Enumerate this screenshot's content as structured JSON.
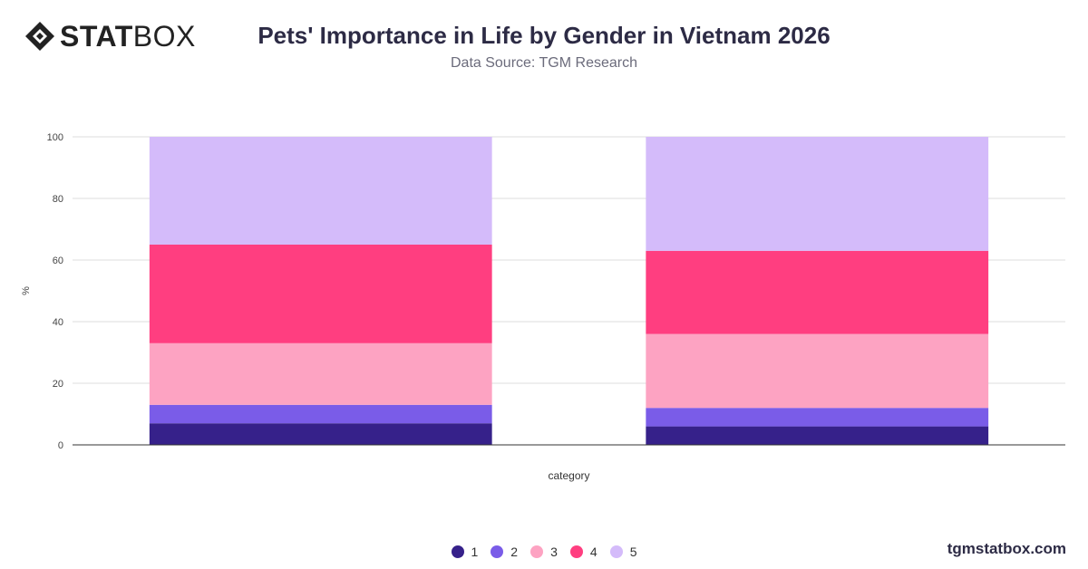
{
  "brand": {
    "logo_bold": "STAT",
    "logo_light": "BOX",
    "footer": "tgmstatbox.com"
  },
  "header": {
    "title": "Pets' Importance in Life by Gender in Vietnam 2026",
    "subtitle": "Data Source: TGM Research"
  },
  "chart_data": {
    "type": "bar",
    "stacked": true,
    "categories": [
      "",
      ""
    ],
    "xlabel": "category",
    "ylabel": "%",
    "ylim": [
      0,
      100
    ],
    "yticks": [
      0,
      20,
      40,
      60,
      80,
      100
    ],
    "grid": true,
    "legend_position": "bottom",
    "series": [
      {
        "name": "1",
        "color": "#36218a",
        "values": [
          7,
          6
        ]
      },
      {
        "name": "2",
        "color": "#7a5ce8",
        "values": [
          6,
          6
        ]
      },
      {
        "name": "3",
        "color": "#fda3c2",
        "values": [
          20,
          24
        ]
      },
      {
        "name": "4",
        "color": "#ff3e80",
        "values": [
          32,
          27
        ]
      },
      {
        "name": "5",
        "color": "#d4bbfa",
        "values": [
          35,
          37
        ]
      }
    ]
  }
}
